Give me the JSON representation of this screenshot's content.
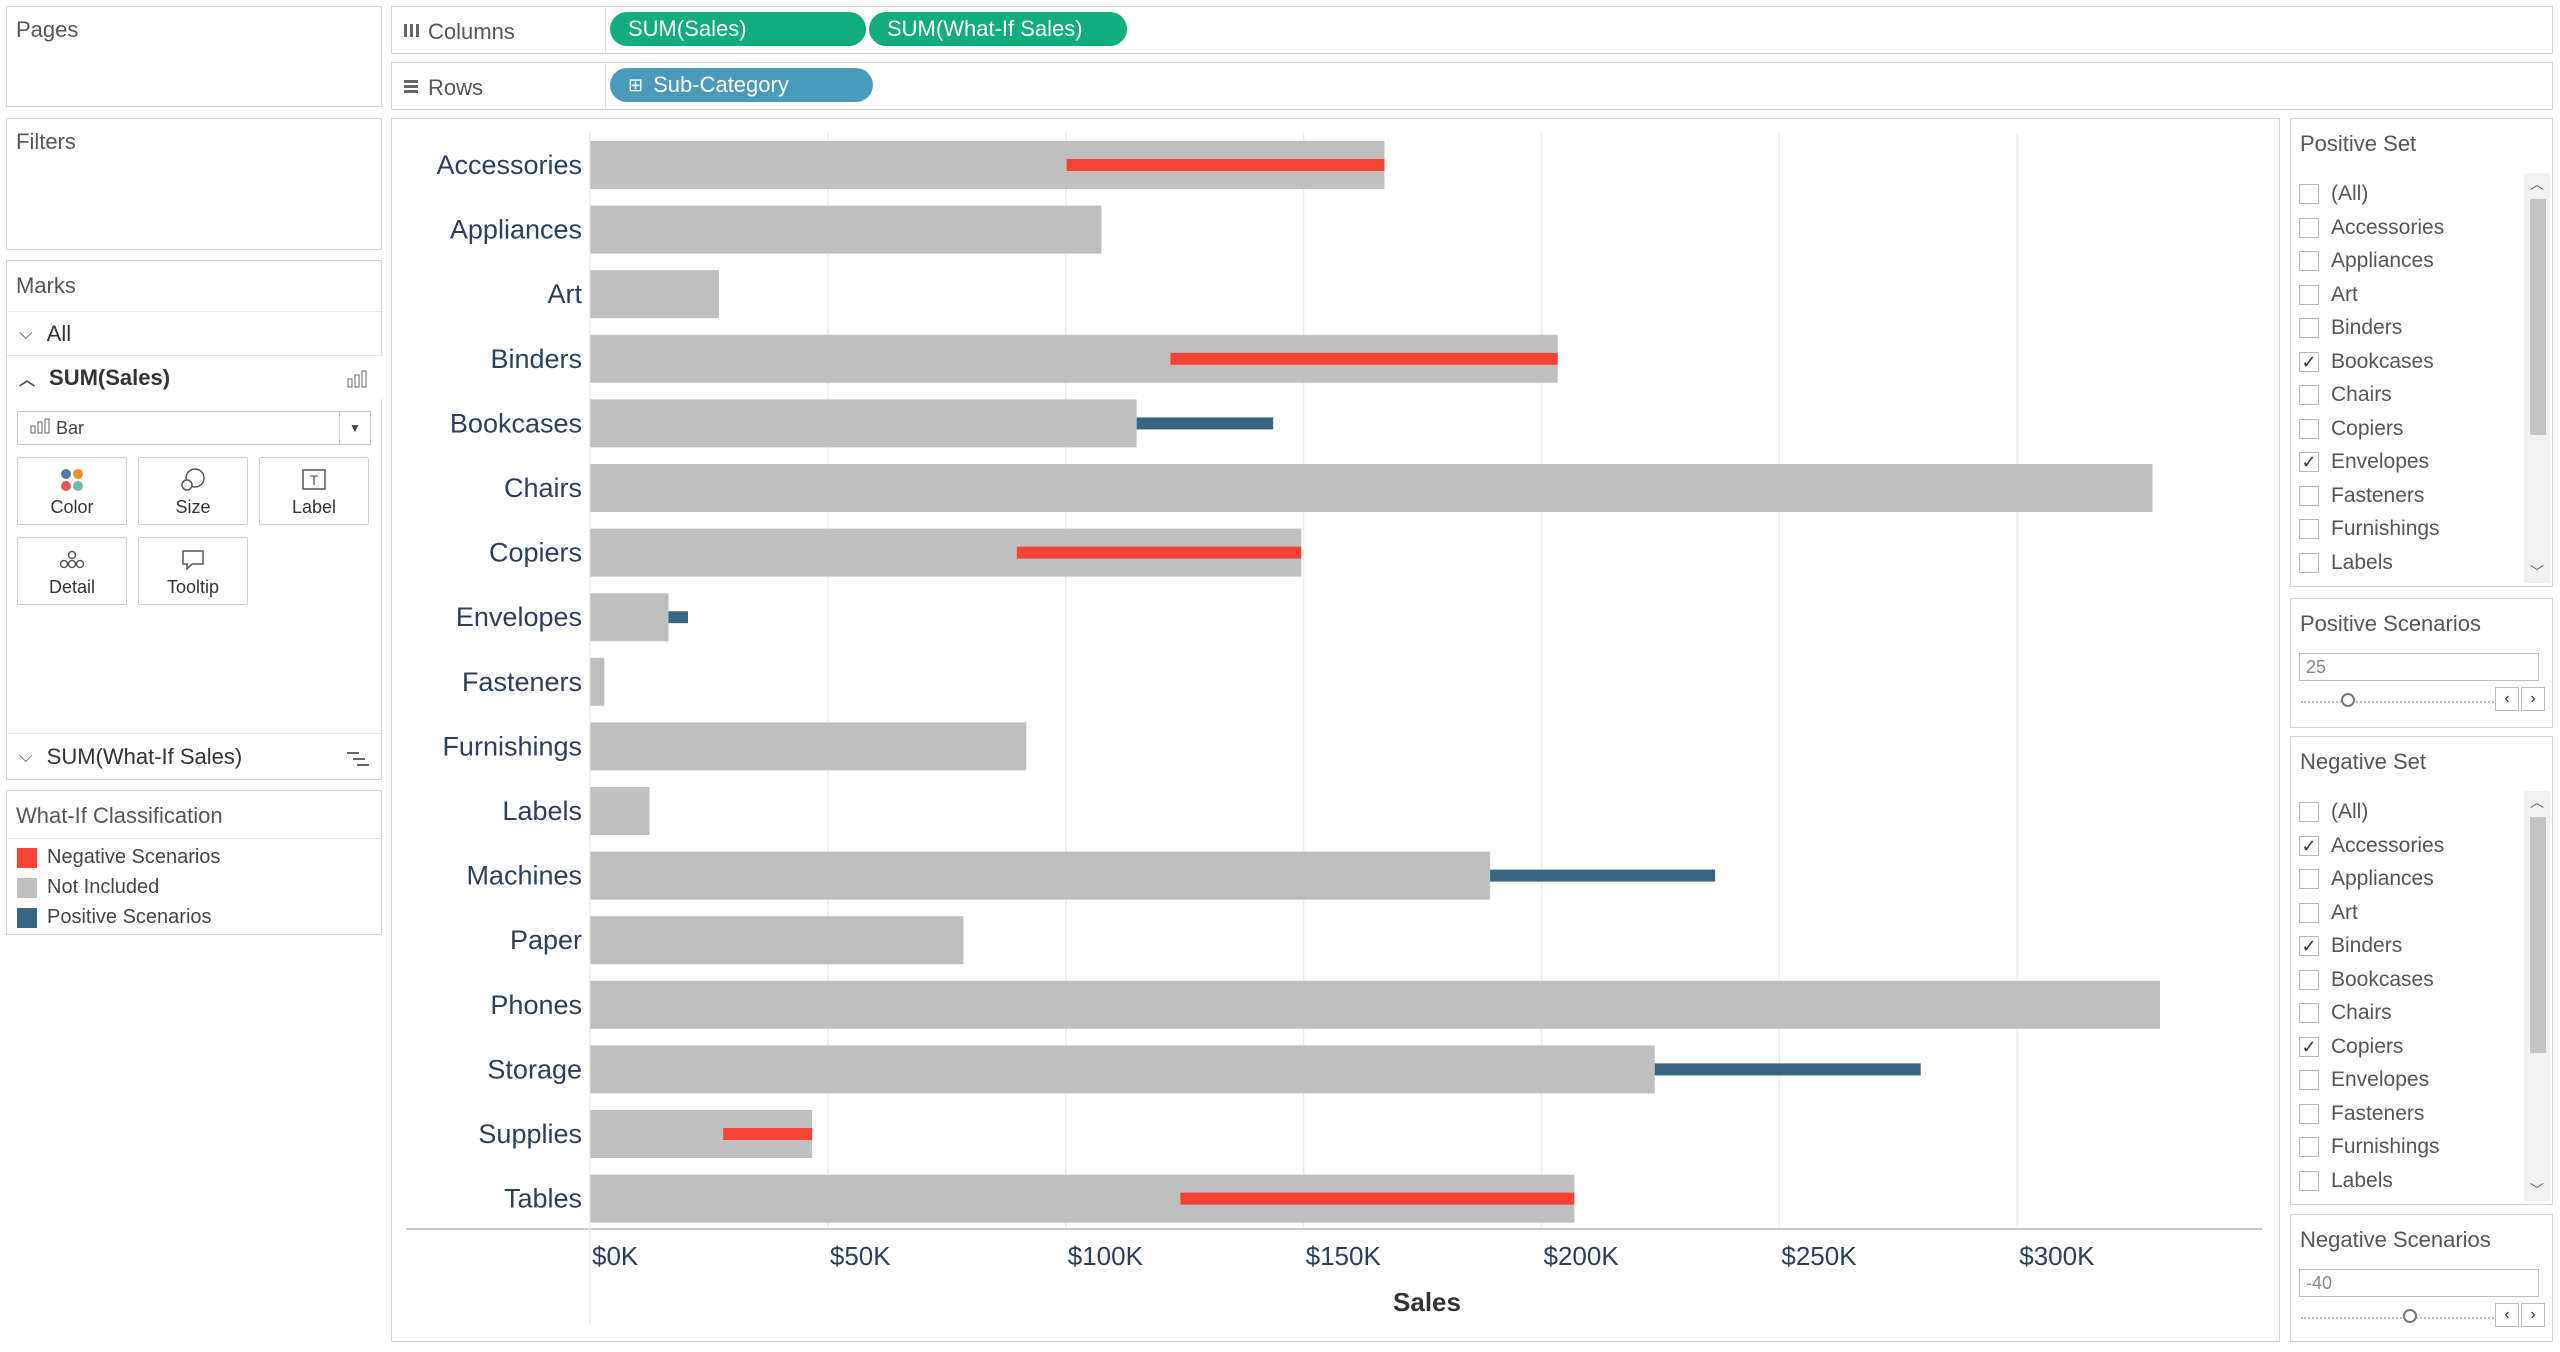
{
  "pages": {
    "title": "Pages"
  },
  "filters": {
    "title": "Filters"
  },
  "marks": {
    "title": "Marks",
    "all_label": "All",
    "sales_label": "SUM(Sales)",
    "mark_type": "Bar",
    "buttons": {
      "color": "Color",
      "size": "Size",
      "label": "Label",
      "detail": "Detail",
      "tooltip": "Tooltip"
    },
    "whatif_label": "SUM(What-If Sales)"
  },
  "legend": {
    "title": "What-If Classification",
    "items": [
      {
        "label": "Negative Scenarios",
        "color": "#f54336"
      },
      {
        "label": "Not Included",
        "color": "#bfbfbf"
      },
      {
        "label": "Positive Scenarios",
        "color": "#376582"
      }
    ]
  },
  "shelves": {
    "columns_label": "Columns",
    "rows_label": "Rows",
    "column_pills": [
      "SUM(Sales)",
      "SUM(What-If Sales)"
    ],
    "row_pill": "Sub-Category",
    "column_pill_color": "#12ad7f",
    "row_pill_color": "#4a9bb9"
  },
  "positive_set": {
    "title": "Positive Set",
    "items": [
      {
        "label": "(All)",
        "checked": false
      },
      {
        "label": "Accessories",
        "checked": false
      },
      {
        "label": "Appliances",
        "checked": false
      },
      {
        "label": "Art",
        "checked": false
      },
      {
        "label": "Binders",
        "checked": false
      },
      {
        "label": "Bookcases",
        "checked": true
      },
      {
        "label": "Chairs",
        "checked": false
      },
      {
        "label": "Copiers",
        "checked": false
      },
      {
        "label": "Envelopes",
        "checked": true
      },
      {
        "label": "Fasteners",
        "checked": false
      },
      {
        "label": "Furnishings",
        "checked": false
      },
      {
        "label": "Labels",
        "checked": false
      }
    ]
  },
  "positive_scenarios": {
    "title": "Positive Scenarios",
    "value": "25"
  },
  "negative_set": {
    "title": "Negative Set",
    "items": [
      {
        "label": "(All)",
        "checked": false
      },
      {
        "label": "Accessories",
        "checked": true
      },
      {
        "label": "Appliances",
        "checked": false
      },
      {
        "label": "Art",
        "checked": false
      },
      {
        "label": "Binders",
        "checked": true
      },
      {
        "label": "Bookcases",
        "checked": false
      },
      {
        "label": "Chairs",
        "checked": false
      },
      {
        "label": "Copiers",
        "checked": true
      },
      {
        "label": "Envelopes",
        "checked": false
      },
      {
        "label": "Fasteners",
        "checked": false
      },
      {
        "label": "Furnishings",
        "checked": false
      },
      {
        "label": "Labels",
        "checked": false
      }
    ]
  },
  "negative_scenarios": {
    "title": "Negative Scenarios",
    "value": "-40"
  },
  "chart_data": {
    "type": "bar",
    "orientation": "horizontal",
    "xlabel": "Sales",
    "ylabel": "",
    "xlim": [
      0,
      340000
    ],
    "ticks": [
      0,
      50000,
      100000,
      150000,
      200000,
      250000,
      300000
    ],
    "tick_labels": [
      "$0K",
      "$50K",
      "$100K",
      "$150K",
      "$200K",
      "$250K",
      "$300K"
    ],
    "grid": true,
    "categories": [
      "Accessories",
      "Appliances",
      "Art",
      "Binders",
      "Bookcases",
      "Chairs",
      "Copiers",
      "Envelopes",
      "Fasteners",
      "Furnishings",
      "Labels",
      "Machines",
      "Paper",
      "Phones",
      "Storage",
      "Supplies",
      "Tables"
    ],
    "series": [
      {
        "name": "SUM(Sales)",
        "values": [
          167000,
          107500,
          27100,
          203400,
          114900,
          328400,
          149500,
          16500,
          3000,
          91700,
          12500,
          189200,
          78500,
          330000,
          223800,
          46700,
          206900
        ]
      },
      {
        "name": "SUM(What-If Sales)",
        "values": [
          100200,
          107500,
          27100,
          122000,
          143600,
          328400,
          89700,
          20600,
          3000,
          91700,
          12500,
          236500,
          78500,
          330000,
          279700,
          28000,
          124100
        ],
        "classification": [
          "Negative Scenarios",
          "Not Included",
          "Not Included",
          "Negative Scenarios",
          "Positive Scenarios",
          "Not Included",
          "Negative Scenarios",
          "Positive Scenarios",
          "Not Included",
          "Not Included",
          "Not Included",
          "Positive Scenarios",
          "Not Included",
          "Not Included",
          "Positive Scenarios",
          "Negative Scenarios",
          "Negative Scenarios"
        ]
      }
    ],
    "colors": {
      "Negative Scenarios": "#f54336",
      "Not Included": "#bfbfbf",
      "Positive Scenarios": "#376582"
    }
  }
}
